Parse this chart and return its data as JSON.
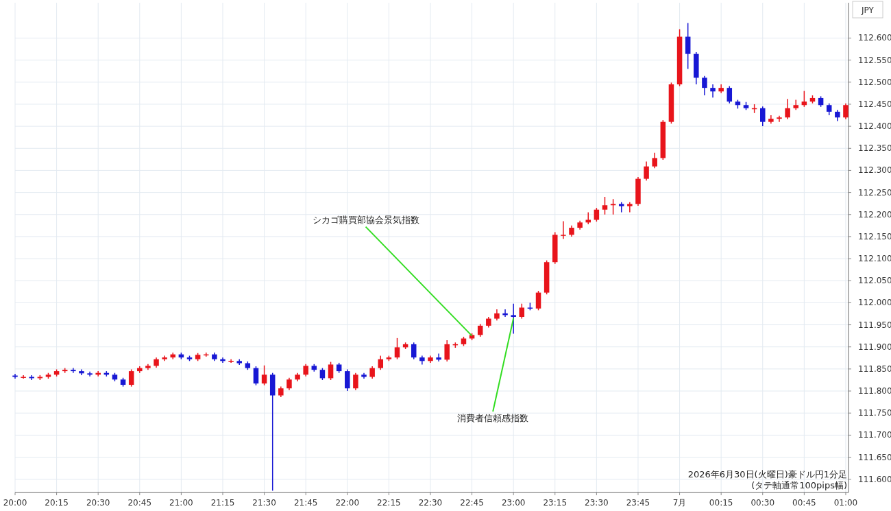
{
  "chart_data": {
    "type": "candlestick",
    "ylabel": "JPY",
    "annotations": [
      {
        "text": "シカゴ購買部協会景気指数",
        "x": "2026-06-30T22:45",
        "y": 111.925
      },
      {
        "text": "消費者信頼感指数",
        "x": "2026-06-30T23:00",
        "y": 111.965
      },
      "2026年6月30日(火曜日)豪ドル円1分足",
      "(タテ軸通常100pips幅)"
    ],
    "x": [
      "2026-06-30T20:00",
      "2026-06-30T20:03",
      "2026-06-30T20:06",
      "2026-06-30T20:09",
      "2026-06-30T20:12",
      "2026-06-30T20:15",
      "2026-06-30T20:18",
      "2026-06-30T20:21",
      "2026-06-30T20:24",
      "2026-06-30T20:27",
      "2026-06-30T20:30",
      "2026-06-30T20:33",
      "2026-06-30T20:36",
      "2026-06-30T20:39",
      "2026-06-30T20:42",
      "2026-06-30T20:45",
      "2026-06-30T20:48",
      "2026-06-30T20:51",
      "2026-06-30T20:54",
      "2026-06-30T20:57",
      "2026-06-30T21:00",
      "2026-06-30T21:03",
      "2026-06-30T21:06",
      "2026-06-30T21:09",
      "2026-06-30T21:12",
      "2026-06-30T21:15",
      "2026-06-30T21:18",
      "2026-06-30T21:21",
      "2026-06-30T21:24",
      "2026-06-30T21:27",
      "2026-06-30T21:30",
      "2026-06-30T21:33",
      "2026-06-30T21:36",
      "2026-06-30T21:39",
      "2026-06-30T21:42",
      "2026-06-30T21:45",
      "2026-06-30T21:48",
      "2026-06-30T21:51",
      "2026-06-30T21:54",
      "2026-06-30T21:57",
      "2026-06-30T22:00",
      "2026-06-30T22:03",
      "2026-06-30T22:06",
      "2026-06-30T22:09",
      "2026-06-30T22:12",
      "2026-06-30T22:15",
      "2026-06-30T22:18",
      "2026-06-30T22:21",
      "2026-06-30T22:24",
      "2026-06-30T22:27",
      "2026-06-30T22:30",
      "2026-06-30T22:33",
      "2026-06-30T22:36",
      "2026-06-30T22:39",
      "2026-06-30T22:42",
      "2026-06-30T22:45",
      "2026-06-30T22:48",
      "2026-06-30T22:51",
      "2026-06-30T22:54",
      "2026-06-30T22:57",
      "2026-06-30T23:00",
      "2026-06-30T23:03",
      "2026-06-30T23:06",
      "2026-06-30T23:09",
      "2026-06-30T23:12",
      "2026-06-30T23:15",
      "2026-06-30T23:18",
      "2026-06-30T23:21",
      "2026-06-30T23:24",
      "2026-06-30T23:27",
      "2026-06-30T23:30",
      "2026-06-30T23:33",
      "2026-06-30T23:36",
      "2026-06-30T23:39",
      "2026-06-30T23:42",
      "2026-06-30T23:45",
      "2026-06-30T23:48",
      "2026-06-30T23:51",
      "2026-06-30T23:54",
      "2026-06-30T23:57",
      "2026-07-01T00:00",
      "2026-07-01T00:03",
      "2026-07-01T00:06",
      "2026-07-01T00:09",
      "2026-07-01T00:12",
      "2026-07-01T00:15",
      "2026-07-01T00:18",
      "2026-07-01T00:21",
      "2026-07-01T00:24",
      "2026-07-01T00:27",
      "2026-07-01T00:30",
      "2026-07-01T00:33",
      "2026-07-01T00:36",
      "2026-07-01T00:39",
      "2026-07-01T00:42",
      "2026-07-01T00:45",
      "2026-07-01T00:48",
      "2026-07-01T00:51",
      "2026-07-01T00:54",
      "2026-07-01T00:57",
      "2026-07-01T01:00"
    ],
    "ohlc": [
      [
        111.835,
        111.839,
        111.828,
        111.832
      ],
      [
        111.832,
        111.836,
        111.828,
        111.832
      ],
      [
        111.832,
        111.836,
        111.825,
        111.829
      ],
      [
        111.829,
        111.836,
        111.825,
        111.832
      ],
      [
        111.832,
        111.841,
        111.828,
        111.837
      ],
      [
        111.837,
        111.849,
        111.833,
        111.845
      ],
      [
        111.845,
        111.852,
        111.841,
        111.848
      ],
      [
        111.848,
        111.852,
        111.841,
        111.845
      ],
      [
        111.845,
        111.849,
        111.836,
        111.84
      ],
      [
        111.84,
        111.844,
        111.833,
        111.837
      ],
      [
        111.837,
        111.845,
        111.833,
        111.841
      ],
      [
        111.841,
        111.845,
        111.833,
        111.837
      ],
      [
        111.837,
        111.841,
        111.822,
        111.826
      ],
      [
        111.826,
        111.83,
        111.81,
        111.814
      ],
      [
        111.814,
        111.849,
        111.81,
        111.845
      ],
      [
        111.845,
        111.856,
        111.841,
        111.852
      ],
      [
        111.852,
        111.861,
        111.848,
        111.857
      ],
      [
        111.857,
        111.876,
        111.853,
        111.872
      ],
      [
        111.872,
        111.88,
        111.868,
        111.876
      ],
      [
        111.876,
        111.887,
        111.872,
        111.883
      ],
      [
        111.883,
        111.887,
        111.872,
        111.876
      ],
      [
        111.876,
        111.88,
        111.868,
        111.872
      ],
      [
        111.872,
        111.886,
        111.868,
        111.882
      ],
      [
        111.882,
        111.887,
        111.878,
        111.883
      ],
      [
        111.883,
        111.887,
        111.868,
        111.872
      ],
      [
        111.872,
        111.876,
        111.864,
        111.868
      ],
      [
        111.868,
        111.872,
        111.864,
        111.868
      ],
      [
        111.868,
        111.872,
        111.859,
        111.863
      ],
      [
        111.863,
        111.867,
        111.848,
        111.852
      ],
      [
        111.852,
        111.856,
        111.813,
        111.817
      ],
      [
        111.817,
        111.858,
        111.813,
        111.837
      ],
      [
        111.837,
        111.841,
        111.574,
        111.79
      ],
      [
        111.79,
        111.81,
        111.786,
        111.806
      ],
      [
        111.806,
        111.83,
        111.802,
        111.826
      ],
      [
        111.826,
        111.841,
        111.822,
        111.837
      ],
      [
        111.837,
        111.861,
        111.833,
        111.857
      ],
      [
        111.857,
        111.861,
        111.844,
        111.848
      ],
      [
        111.848,
        111.852,
        111.825,
        111.829
      ],
      [
        111.829,
        111.866,
        111.825,
        111.86
      ],
      [
        111.86,
        111.864,
        111.841,
        111.845
      ],
      [
        111.845,
        111.849,
        111.8,
        111.806
      ],
      [
        111.806,
        111.841,
        111.802,
        111.837
      ],
      [
        111.837,
        111.841,
        111.828,
        111.832
      ],
      [
        111.832,
        111.856,
        111.828,
        111.852
      ],
      [
        111.852,
        111.88,
        111.848,
        111.872
      ],
      [
        111.872,
        111.88,
        111.868,
        111.876
      ],
      [
        111.876,
        111.92,
        111.872,
        111.899
      ],
      [
        111.899,
        111.91,
        111.895,
        111.906
      ],
      [
        111.906,
        111.91,
        111.872,
        111.876
      ],
      [
        111.876,
        111.88,
        111.86,
        111.868
      ],
      [
        111.868,
        111.88,
        111.864,
        111.876
      ],
      [
        111.876,
        111.885,
        111.867,
        111.871
      ],
      [
        111.871,
        111.915,
        111.867,
        111.906
      ],
      [
        111.906,
        111.91,
        111.898,
        111.906
      ],
      [
        111.906,
        111.923,
        111.902,
        111.919
      ],
      [
        111.919,
        111.931,
        111.915,
        111.927
      ],
      [
        111.927,
        111.952,
        111.923,
        111.948
      ],
      [
        111.948,
        111.968,
        111.944,
        111.964
      ],
      [
        111.964,
        111.985,
        111.96,
        111.976
      ],
      [
        111.976,
        111.985,
        111.968,
        111.972
      ],
      [
        111.972,
        111.998,
        111.93,
        111.968
      ],
      [
        111.968,
        111.998,
        111.964,
        111.989
      ],
      [
        111.989,
        112.0,
        111.983,
        111.987
      ],
      [
        111.987,
        112.027,
        111.983,
        112.023
      ],
      [
        112.023,
        112.096,
        112.019,
        112.092
      ],
      [
        112.092,
        112.16,
        112.088,
        112.154
      ],
      [
        112.154,
        112.185,
        112.145,
        112.154
      ],
      [
        112.154,
        112.175,
        112.15,
        112.17
      ],
      [
        112.17,
        112.186,
        112.166,
        112.182
      ],
      [
        112.182,
        112.205,
        112.178,
        112.188
      ],
      [
        112.188,
        112.215,
        112.184,
        112.211
      ],
      [
        112.211,
        112.24,
        112.2,
        112.221
      ],
      [
        112.221,
        112.235,
        112.2,
        112.224
      ],
      [
        112.224,
        112.228,
        112.205,
        112.219
      ],
      [
        112.219,
        112.228,
        112.205,
        112.224
      ],
      [
        112.224,
        112.285,
        112.22,
        112.281
      ],
      [
        112.281,
        112.32,
        112.277,
        112.309
      ],
      [
        112.309,
        112.34,
        112.305,
        112.328
      ],
      [
        112.328,
        112.414,
        112.324,
        112.41
      ],
      [
        112.41,
        112.499,
        112.406,
        112.495
      ],
      [
        112.495,
        112.62,
        112.491,
        112.603
      ],
      [
        112.603,
        112.634,
        112.53,
        112.564
      ],
      [
        112.564,
        112.568,
        112.495,
        112.51
      ],
      [
        112.51,
        112.514,
        112.47,
        112.487
      ],
      [
        112.487,
        112.495,
        112.465,
        112.479
      ],
      [
        112.479,
        112.495,
        112.475,
        112.487
      ],
      [
        112.487,
        112.491,
        112.452,
        112.456
      ],
      [
        112.456,
        112.46,
        112.44,
        112.448
      ],
      [
        112.448,
        112.455,
        112.437,
        112.441
      ],
      [
        112.441,
        112.45,
        112.43,
        112.441
      ],
      [
        112.441,
        112.445,
        112.4,
        112.41
      ],
      [
        112.41,
        112.425,
        112.406,
        112.417
      ],
      [
        112.417,
        112.424,
        112.41,
        112.42
      ],
      [
        112.42,
        112.462,
        112.416,
        112.441
      ],
      [
        112.441,
        112.46,
        112.437,
        112.448
      ],
      [
        112.448,
        112.48,
        112.444,
        112.456
      ],
      [
        112.456,
        112.47,
        112.452,
        112.464
      ],
      [
        112.464,
        112.468,
        112.444,
        112.448
      ],
      [
        112.448,
        112.452,
        112.425,
        112.433
      ],
      [
        112.433,
        112.437,
        112.412,
        112.42
      ],
      [
        112.42,
        112.452,
        112.416,
        112.448
      ]
    ],
    "xlim": [
      "2026-06-30T20:00",
      "2026-07-01T01:01"
    ],
    "xticks": [
      {
        "value": "2026-06-30T20:00",
        "label": "20:00"
      },
      {
        "value": "2026-06-30T20:15",
        "label": "20:15"
      },
      {
        "value": "2026-06-30T20:30",
        "label": "20:30"
      },
      {
        "value": "2026-06-30T20:45",
        "label": "20:45"
      },
      {
        "value": "2026-06-30T21:00",
        "label": "21:00"
      },
      {
        "value": "2026-06-30T21:15",
        "label": "21:15"
      },
      {
        "value": "2026-06-30T21:30",
        "label": "21:30"
      },
      {
        "value": "2026-06-30T21:45",
        "label": "21:45"
      },
      {
        "value": "2026-06-30T22:00",
        "label": "22:00"
      },
      {
        "value": "2026-06-30T22:15",
        "label": "22:15"
      },
      {
        "value": "2026-06-30T22:30",
        "label": "22:30"
      },
      {
        "value": "2026-06-30T22:45",
        "label": "22:45"
      },
      {
        "value": "2026-06-30T23:00",
        "label": "23:00"
      },
      {
        "value": "2026-06-30T23:15",
        "label": "23:15"
      },
      {
        "value": "2026-06-30T23:30",
        "label": "23:30"
      },
      {
        "value": "2026-06-30T23:45",
        "label": "23:45"
      },
      {
        "value": "2026-07-01T00:00",
        "label": "7月"
      },
      {
        "value": "2026-07-01T00:15",
        "label": "00:15"
      },
      {
        "value": "2026-07-01T00:30",
        "label": "00:30"
      },
      {
        "value": "2026-07-01T00:45",
        "label": "00:45"
      },
      {
        "value": "2026-07-01T01:00",
        "label": "01:00"
      }
    ],
    "ylim": [
      111.57,
      112.68
    ],
    "yticks": [
      {
        "value": 111.6,
        "label": "111.600"
      },
      {
        "value": 111.65,
        "label": "111.650"
      },
      {
        "value": 111.7,
        "label": "111.700"
      },
      {
        "value": 111.75,
        "label": "111.750"
      },
      {
        "value": 111.8,
        "label": "111.800"
      },
      {
        "value": 111.85,
        "label": "111.850"
      },
      {
        "value": 111.9,
        "label": "111.900"
      },
      {
        "value": 111.95,
        "label": "111.950"
      },
      {
        "value": 112.0,
        "label": "112.000"
      },
      {
        "value": 112.05,
        "label": "112.050"
      },
      {
        "value": 112.1,
        "label": "112.100"
      },
      {
        "value": 112.15,
        "label": "112.150"
      },
      {
        "value": 112.2,
        "label": "112.200"
      },
      {
        "value": 112.25,
        "label": "112.250"
      },
      {
        "value": 112.3,
        "label": "112.300"
      },
      {
        "value": 112.35,
        "label": "112.350"
      },
      {
        "value": 112.4,
        "label": "112.400"
      },
      {
        "value": 112.45,
        "label": "112.450"
      },
      {
        "value": 112.5,
        "label": "112.500"
      },
      {
        "value": 112.55,
        "label": "112.550"
      },
      {
        "value": 112.6,
        "label": "112.600"
      }
    ],
    "grid": true
  }
}
